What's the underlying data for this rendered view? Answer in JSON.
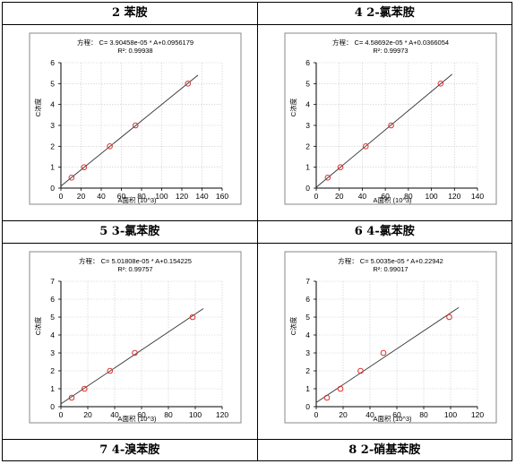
{
  "headers": {
    "tl": "2 苯胺",
    "tr": "4 2-氯苯胺",
    "ml": "5 3-氯苯胺",
    "mr": "6 4-氯苯胺",
    "bl": "7 4-溴苯胺",
    "br": "8 2-硝基苯胺"
  },
  "chart_data": [
    {
      "type": "scatter",
      "equation": "方程：  C= 3.90458e-05 * A+0.0956179",
      "r2": "R²:  0.99938",
      "xlabel": "A面积 (10^3)",
      "ylabel": "C浓度",
      "xlim": [
        0,
        160
      ],
      "ylim": [
        0,
        6
      ],
      "xticks": [
        0,
        20,
        40,
        60,
        80,
        100,
        120,
        140,
        160
      ],
      "yticks": [
        0,
        1,
        2,
        3,
        4,
        5,
        6
      ],
      "points": [
        [
          10.5,
          0.5
        ],
        [
          23,
          1.0
        ],
        [
          48.5,
          2.0
        ],
        [
          74,
          3.0
        ],
        [
          126,
          5.0
        ]
      ],
      "fit": {
        "slope": 0.0390458,
        "intercept": 0.0956179,
        "x_range": [
          0,
          136
        ]
      },
      "point_color": "#e03030",
      "line_color": "#333333"
    },
    {
      "type": "scatter",
      "equation": "方程：  C= 4.58692e-05 * A+0.0366054",
      "r2": "R²:  0.99973",
      "xlabel": "A面积 (10^3)",
      "ylabel": "C浓度",
      "xlim": [
        0,
        140
      ],
      "ylim": [
        0,
        6
      ],
      "xticks": [
        0,
        20,
        40,
        60,
        80,
        100,
        120,
        140
      ],
      "yticks": [
        0,
        1,
        2,
        3,
        4,
        5,
        6
      ],
      "points": [
        [
          10,
          0.5
        ],
        [
          21,
          1.0
        ],
        [
          43,
          2.0
        ],
        [
          65,
          3.0
        ],
        [
          108,
          5.0
        ]
      ],
      "fit": {
        "slope": 0.0458692,
        "intercept": 0.0366054,
        "x_range": [
          0,
          118
        ]
      },
      "point_color": "#e03030",
      "line_color": "#333333"
    },
    {
      "type": "scatter",
      "equation": "方程：  C= 5.01808e-05 * A+0.154225",
      "r2": "R²:  0.99757",
      "xlabel": "A面积 (10^3)",
      "ylabel": "C浓度",
      "xlim": [
        0,
        120
      ],
      "ylim": [
        0,
        7
      ],
      "xticks": [
        0,
        20,
        40,
        60,
        80,
        100,
        120
      ],
      "yticks": [
        0,
        1,
        2,
        3,
        4,
        5,
        6,
        7
      ],
      "points": [
        [
          8,
          0.5
        ],
        [
          17.5,
          1.0
        ],
        [
          36.5,
          2.0
        ],
        [
          55,
          3.0
        ],
        [
          98,
          5.0
        ]
      ],
      "fit": {
        "slope": 0.0501808,
        "intercept": 0.154225,
        "x_range": [
          0,
          106
        ]
      },
      "point_color": "#e03030",
      "line_color": "#333333"
    },
    {
      "type": "scatter",
      "equation": "方程：  C= 5.0035e-05 * A+0.22942",
      "r2": "R²:  0.99017",
      "xlabel": "A面积 (10^3)",
      "ylabel": "C浓度",
      "xlim": [
        0,
        120
      ],
      "ylim": [
        0,
        7
      ],
      "xticks": [
        0,
        20,
        40,
        60,
        80,
        100,
        120
      ],
      "yticks": [
        0,
        1,
        2,
        3,
        4,
        5,
        6,
        7
      ],
      "points": [
        [
          8,
          0.5
        ],
        [
          18,
          1.0
        ],
        [
          33,
          2.0
        ],
        [
          50,
          3.0
        ],
        [
          99,
          5.0
        ]
      ],
      "fit": {
        "slope": 0.050035,
        "intercept": 0.22942,
        "x_range": [
          0,
          106
        ]
      },
      "point_color": "#e03030",
      "line_color": "#333333"
    }
  ]
}
